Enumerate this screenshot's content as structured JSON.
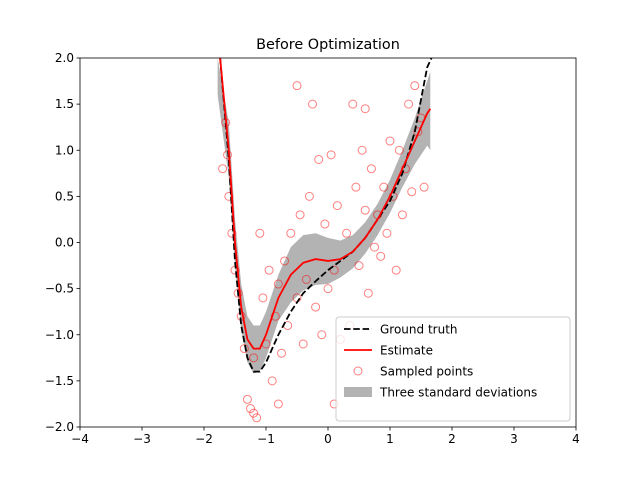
{
  "chart_data": {
    "type": "line",
    "title": "Before Optimization",
    "xlim": [
      -4,
      4
    ],
    "xticks": [
      {
        "value": -4,
        "label": "−4"
      },
      {
        "value": -3,
        "label": "−3"
      },
      {
        "value": -2,
        "label": "−2"
      },
      {
        "value": -1,
        "label": "−1"
      },
      0,
      1,
      2,
      3,
      4
    ],
    "ylim": [
      -2,
      2
    ],
    "yticks": [
      {
        "value": -2,
        "label": "−2.0"
      },
      {
        "value": -1.5,
        "label": "−1.5"
      },
      {
        "value": -1,
        "label": "−1.0"
      },
      {
        "value": -0.5,
        "label": "−0.5"
      },
      {
        "value": 0,
        "label": "0.0"
      },
      {
        "value": 0.5,
        "label": "0.5"
      },
      {
        "value": 1,
        "label": "1.0"
      },
      {
        "value": 1.5,
        "label": "1.5"
      },
      {
        "value": 2,
        "label": "2.0"
      }
    ],
    "legend": "lower right",
    "series": [
      {
        "name": "Ground truth",
        "type": "line",
        "dash": true,
        "color": "#000000",
        "x": [
          -1.74,
          -1.6,
          -1.5,
          -1.4,
          -1.3,
          -1.2,
          -1.1,
          -1.0,
          -0.8,
          -0.6,
          -0.4,
          -0.2,
          0,
          0.2,
          0.4,
          0.6,
          0.8,
          1.0,
          1.2,
          1.4,
          1.5,
          1.6,
          1.67
        ],
        "values": [
          2.0,
          0.9,
          -0.2,
          -0.9,
          -1.25,
          -1.4,
          -1.4,
          -1.3,
          -1.0,
          -0.75,
          -0.55,
          -0.42,
          -0.3,
          -0.2,
          -0.1,
          0.05,
          0.25,
          0.45,
          0.75,
          1.2,
          1.55,
          1.9,
          2.0
        ]
      },
      {
        "name": "Estimate",
        "type": "line",
        "color": "#ff0000",
        "x": [
          -1.74,
          -1.6,
          -1.5,
          -1.4,
          -1.3,
          -1.2,
          -1.1,
          -1.0,
          -0.8,
          -0.6,
          -0.4,
          -0.2,
          0,
          0.2,
          0.4,
          0.6,
          0.8,
          1.0,
          1.2,
          1.4,
          1.6,
          1.65
        ],
        "values": [
          2.0,
          1.0,
          0.0,
          -0.7,
          -1.05,
          -1.15,
          -1.15,
          -1.0,
          -0.6,
          -0.35,
          -0.22,
          -0.18,
          -0.2,
          -0.18,
          -0.1,
          0.05,
          0.25,
          0.5,
          0.8,
          1.1,
          1.4,
          1.45
        ]
      },
      {
        "name": "Sampled points",
        "type": "scatter",
        "color": "#ff0000",
        "x": [
          -1.7,
          -1.65,
          -1.62,
          -1.6,
          -1.55,
          -1.5,
          -1.45,
          -1.4,
          -1.35,
          -1.3,
          -1.25,
          -1.2,
          -1.15,
          -1.1,
          -1.05,
          -1.0,
          -0.95,
          -0.9,
          -0.85,
          -0.8,
          -0.75,
          -0.7,
          -0.65,
          -0.6,
          -0.5,
          -0.45,
          -0.4,
          -0.35,
          -0.3,
          -0.25,
          -0.2,
          -0.15,
          -0.1,
          -0.05,
          0,
          0.05,
          0.1,
          0.15,
          0.2,
          0.3,
          0.35,
          0.4,
          0.45,
          0.5,
          0.55,
          0.6,
          0.65,
          0.7,
          0.75,
          0.8,
          0.85,
          0.9,
          0.95,
          1.0,
          1.05,
          1.1,
          1.15,
          1.2,
          1.25,
          1.3,
          1.35,
          1.4,
          1.45,
          1.5,
          1.55,
          -0.5,
          -0.8,
          0.6,
          -1.2,
          0.1
        ],
        "values": [
          0.8,
          1.3,
          0.95,
          0.5,
          0.1,
          -0.3,
          -0.55,
          -0.8,
          -1.15,
          -1.7,
          -1.8,
          -1.25,
          -1.9,
          0.1,
          -0.6,
          -1.1,
          -0.3,
          -1.5,
          -0.8,
          -0.45,
          -1.2,
          -0.2,
          -0.9,
          0.1,
          -0.6,
          0.3,
          -1.1,
          -0.4,
          0.5,
          1.5,
          -0.7,
          0.9,
          -1.0,
          0.2,
          -0.5,
          0.95,
          -0.3,
          0.4,
          -1.05,
          0.1,
          -0.9,
          1.5,
          0.6,
          -0.25,
          1.0,
          0.35,
          -0.55,
          0.8,
          -0.05,
          0.3,
          -0.15,
          0.6,
          0.1,
          1.1,
          0.5,
          -0.3,
          1.0,
          0.3,
          0.8,
          1.5,
          0.55,
          1.7,
          1.2,
          1.35,
          0.6,
          1.7,
          -1.75,
          1.45,
          -1.85,
          -1.75
        ]
      },
      {
        "name": "Three standard deviations",
        "type": "band",
        "color": "#808080",
        "x": [
          -1.78,
          -1.6,
          -1.5,
          -1.4,
          -1.3,
          -1.2,
          -1.1,
          -1.0,
          -0.8,
          -0.6,
          -0.4,
          -0.2,
          0,
          0.2,
          0.4,
          0.6,
          0.8,
          1.0,
          1.2,
          1.4,
          1.6,
          1.65
        ],
        "upper": [
          2.0,
          1.3,
          0.25,
          -0.45,
          -0.8,
          -0.9,
          -0.9,
          -0.75,
          -0.35,
          -0.05,
          0.08,
          0.1,
          0.05,
          0.02,
          0.08,
          0.22,
          0.42,
          0.68,
          1.0,
          1.35,
          1.75,
          1.85
        ],
        "lower": [
          1.6,
          0.7,
          -0.25,
          -0.95,
          -1.3,
          -1.42,
          -1.4,
          -1.25,
          -0.85,
          -0.65,
          -0.52,
          -0.46,
          -0.45,
          -0.38,
          -0.28,
          -0.12,
          0.08,
          0.32,
          0.6,
          0.85,
          1.05,
          1.0
        ]
      }
    ]
  }
}
